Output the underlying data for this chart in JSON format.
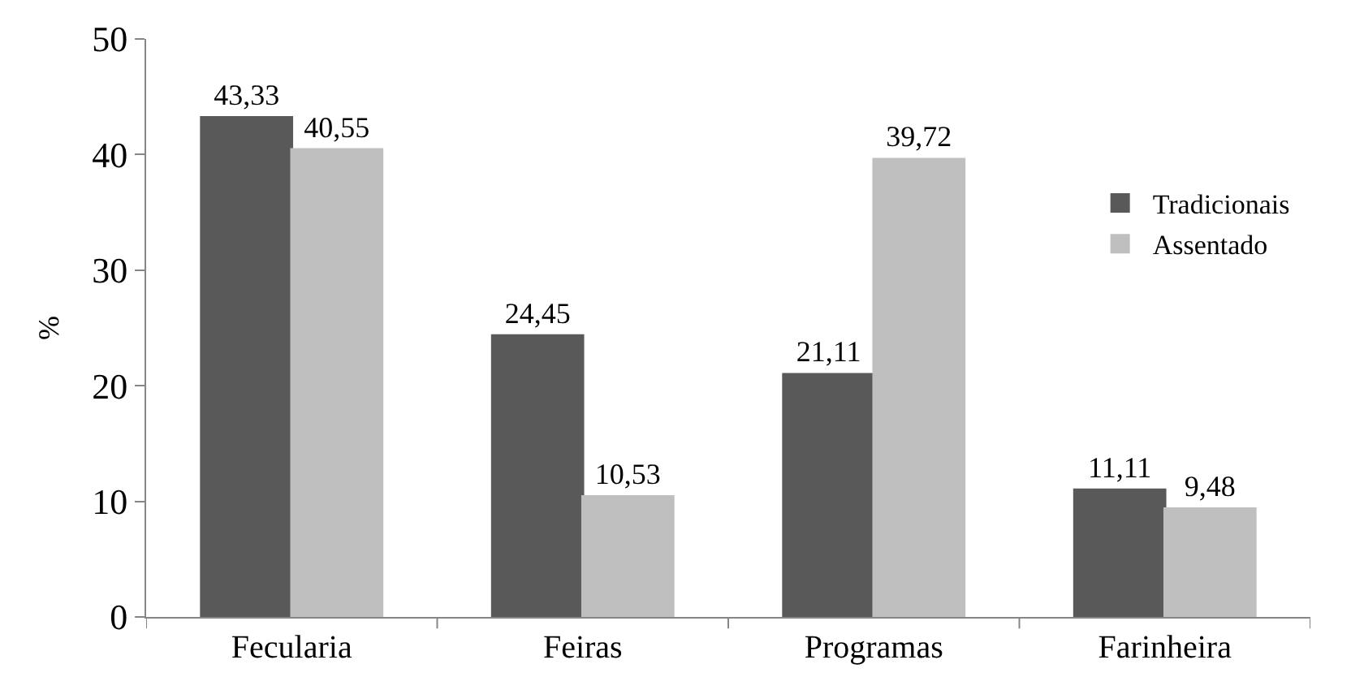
{
  "chart_data": {
    "type": "bar",
    "ylabel": "%",
    "categories": [
      "Fecularia",
      "Feiras",
      "Programas",
      "Farinheira"
    ],
    "series": [
      {
        "name": "Tradicionais",
        "color": "#595959",
        "values": [
          43.33,
          24.45,
          21.11,
          11.11
        ],
        "value_labels": [
          "43,33",
          "24,45",
          "21,11",
          "11,11"
        ]
      },
      {
        "name": "Assentado",
        "color": "#bfbfbf",
        "values": [
          40.55,
          10.53,
          39.72,
          9.48
        ],
        "value_labels": [
          "40,55",
          "10,53",
          "39,72",
          "9,48"
        ]
      }
    ],
    "ylim": [
      0,
      50
    ],
    "yticks": [
      0,
      10,
      20,
      30,
      40,
      50
    ],
    "legend": "right"
  }
}
